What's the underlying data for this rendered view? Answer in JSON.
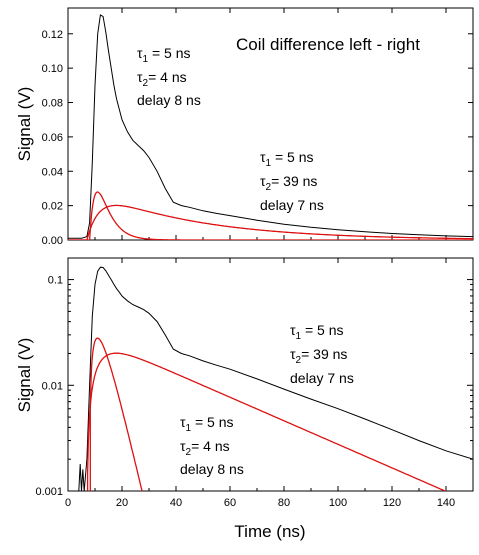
{
  "chart_data": [
    {
      "type": "line",
      "title": "Coil difference left - right",
      "xlabel": "",
      "ylabel": "Signal (V)",
      "xlim": [
        0,
        150
      ],
      "ylim": [
        0,
        0.135
      ],
      "x_scale": "linear",
      "y_scale": "linear",
      "grid": false,
      "x_ticks": [
        "0",
        "20",
        "40",
        "60",
        "80",
        "100",
        "120",
        "140"
      ],
      "y_ticks": [
        "0.00",
        "0.02",
        "0.04",
        "0.06",
        "0.08",
        "0.10",
        "0.12"
      ],
      "colors": {
        "measured": "#000000",
        "fit": "#dd1111"
      },
      "series": [
        {
          "kind": "measured",
          "x": [
            0,
            5,
            7,
            8,
            9,
            10,
            11,
            12,
            13,
            14,
            15,
            16,
            17,
            18,
            19,
            20,
            22,
            24,
            26,
            28,
            30,
            33,
            36,
            39,
            42,
            45,
            50,
            55,
            60,
            70,
            80,
            90,
            100,
            110,
            120,
            130,
            140,
            150
          ],
          "y": [
            0.001,
            0.001,
            0.002,
            0.01,
            0.045,
            0.09,
            0.12,
            0.131,
            0.13,
            0.121,
            0.11,
            0.1,
            0.09,
            0.082,
            0.076,
            0.07,
            0.063,
            0.058,
            0.055,
            0.052,
            0.048,
            0.04,
            0.03,
            0.022,
            0.02,
            0.019,
            0.017,
            0.0155,
            0.0142,
            0.0115,
            0.0092,
            0.0074,
            0.006,
            0.0048,
            0.0038,
            0.003,
            0.0024,
            0.002
          ]
        },
        {
          "kind": "fit",
          "amplitude": 0.131,
          "tau1": 5,
          "tau2": 4,
          "delay": 8
        },
        {
          "kind": "fit",
          "amplitude": 0.03,
          "tau1": 5,
          "tau2": 39,
          "delay": 7
        }
      ],
      "annotations": [
        {
          "lines": [
            "τ",
            "1",
            " = 5 ns"
          ],
          "line2": [
            "τ",
            "2",
            "= 4 ns"
          ],
          "line3": "delay 8 ns"
        },
        {
          "lines": [
            "τ",
            "1",
            " = 5 ns"
          ],
          "line2": [
            "τ",
            "2",
            "= 39 ns"
          ],
          "line3": "delay 7 ns"
        }
      ]
    },
    {
      "type": "line",
      "title": "",
      "xlabel": "Time (ns)",
      "ylabel": "Signal (V)",
      "xlim": [
        0,
        150
      ],
      "ylim": [
        0.001,
        0.16
      ],
      "x_scale": "linear",
      "y_scale": "log",
      "grid": false,
      "x_ticks": [
        "0",
        "20",
        "40",
        "60",
        "80",
        "100",
        "120",
        "140"
      ],
      "y_ticks": [
        "0.001",
        "0.01",
        "0.1"
      ],
      "y_tick_values": [
        0.001,
        0.01,
        0.1
      ],
      "colors": {
        "measured": "#000000",
        "fit": "#dd1111"
      },
      "series": [
        {
          "kind": "measured",
          "x": [
            4,
            4.5,
            5,
            5.5,
            6,
            7,
            8,
            9,
            10,
            11,
            12,
            13,
            14,
            15,
            16,
            17,
            18,
            19,
            20,
            22,
            24,
            26,
            28,
            30,
            33,
            36,
            39,
            42,
            45,
            50,
            55,
            60,
            70,
            80,
            90,
            100,
            110,
            120,
            130,
            140,
            150
          ],
          "y": [
            0.001,
            0.0018,
            0.001,
            0.0016,
            0.001,
            0.002,
            0.01,
            0.045,
            0.09,
            0.12,
            0.131,
            0.13,
            0.121,
            0.11,
            0.1,
            0.09,
            0.082,
            0.076,
            0.07,
            0.063,
            0.058,
            0.055,
            0.052,
            0.048,
            0.04,
            0.03,
            0.022,
            0.02,
            0.019,
            0.017,
            0.0155,
            0.0142,
            0.0115,
            0.0092,
            0.0074,
            0.006,
            0.0048,
            0.0038,
            0.003,
            0.0024,
            0.002
          ]
        },
        {
          "kind": "fit",
          "amplitude": 0.131,
          "tau1": 5,
          "tau2": 4,
          "delay": 8
        },
        {
          "kind": "fit",
          "amplitude": 0.03,
          "tau1": 5,
          "tau2": 39,
          "delay": 7
        }
      ],
      "annotations": [
        {
          "lines": [
            "τ",
            "1",
            " = 5 ns"
          ],
          "line2": [
            "τ",
            "2",
            "= 39 ns"
          ],
          "line3": "delay 7 ns"
        },
        {
          "lines": [
            "τ",
            "1",
            " = 5 ns"
          ],
          "line2": [
            "τ",
            "2",
            "= 4 ns"
          ],
          "line3": "delay 8 ns"
        }
      ]
    }
  ]
}
